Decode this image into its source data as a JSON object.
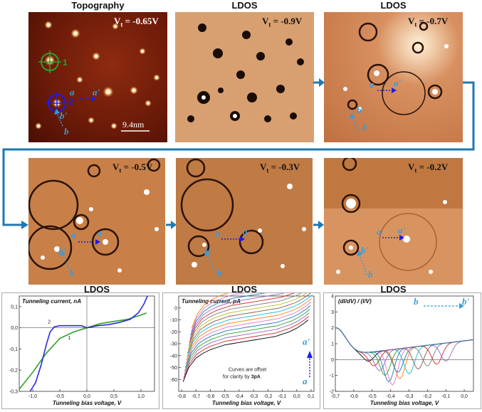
{
  "titles": {
    "topography": "Topography",
    "ldos_top_mid": "LDOS",
    "ldos_top_right": "LDOS",
    "ldos_mid_left": "LDOS",
    "ldos_mid_mid": "LDOS",
    "ldos_mid_right": "LDOS"
  },
  "voltages": {
    "p1": "V",
    "p1_sub": "t",
    "p1_val": " = -0.65V",
    "p2": "V",
    "p2_sub": "t",
    "p2_val": " = -0.9V",
    "p3": "V",
    "p3_sub": "t",
    "p3_val": " = -0.7V",
    "p4": "V",
    "p4_sub": "t",
    "p4_val": " = -0.5V",
    "p5": "V",
    "p5_sub": "t",
    "p5_val": " = -0.3V",
    "p6": "V",
    "p6_sub": "t",
    "p6_val": " = -0.2V"
  },
  "scale_bar": "9.4nm",
  "markers": {
    "one": "1",
    "two": "2",
    "a": "a",
    "a_prime": "a'",
    "b": "b",
    "b_prime": "b'"
  },
  "colors": {
    "arrow": "#1f78b4",
    "marker_green": "#2ea02c",
    "marker_blue": "#1a1aff",
    "label_blue": "#3a9ad9"
  },
  "chart_data": [
    {
      "type": "line",
      "title": "Tunneling current, nA",
      "xlabel": "Tunneling bias voltage, V",
      "xlim": [
        -1.25,
        1.25
      ],
      "ylim": [
        -0.3,
        0.15
      ],
      "xticks": [
        "-1,0",
        "-0,5",
        "0,0",
        "0,5",
        "1,0"
      ],
      "xtick_values": [
        -1.0,
        -0.5,
        0.0,
        0.5,
        1.0
      ],
      "yticks": [
        "0,1",
        "0,0",
        "-0,1",
        "-0,2",
        "-0,3"
      ],
      "ytick_values": [
        0.1,
        0.0,
        -0.1,
        -0.2,
        -0.3
      ],
      "series": [
        {
          "name": "1",
          "color": "#2ea02c",
          "x": [
            -1.25,
            -1.0,
            -0.75,
            -0.5,
            -0.25,
            0.0,
            0.25,
            0.5,
            0.75,
            1.0,
            1.1
          ],
          "y": [
            -0.29,
            -0.21,
            -0.12,
            -0.05,
            -0.02,
            0.0,
            0.02,
            0.03,
            0.04,
            0.06,
            0.07
          ]
        },
        {
          "name": "2",
          "color": "#2b2bdd",
          "x": [
            -1.05,
            -0.95,
            -0.85,
            -0.75,
            -0.68,
            -0.6,
            -0.5,
            -0.3,
            -0.1,
            0.0,
            0.2,
            0.4,
            0.6,
            0.8,
            0.95,
            1.05,
            1.12
          ],
          "y": [
            -0.3,
            -0.26,
            -0.18,
            -0.08,
            -0.02,
            0.005,
            0.01,
            0.01,
            0.01,
            0.0,
            0.01,
            0.015,
            0.025,
            0.04,
            0.07,
            0.11,
            0.15
          ]
        }
      ]
    },
    {
      "type": "line",
      "title": "Tunneling current, pA",
      "xlabel": "Tunneling bias voltage, V",
      "annotation": "Curves are offset for clarity by 3pA",
      "annotation_line1": "Curves are offset",
      "annotation_line2": "for clarity by",
      "annotation_bold": "3pA",
      "xlim": [
        -0.82,
        0.12
      ],
      "ylim": [
        -70,
        10
      ],
      "xticks": [
        "-0,8",
        "-0,7",
        "-0,6",
        "-0,5",
        "-0,4",
        "-0,3",
        "-0,2",
        "-0,1",
        "0,0",
        "0,1"
      ],
      "xtick_values": [
        -0.8,
        -0.7,
        -0.6,
        -0.5,
        -0.4,
        -0.3,
        -0.2,
        -0.1,
        0.0,
        0.1
      ],
      "yticks": [
        "0",
        "-10",
        "-20",
        "-30",
        "-40",
        "-50",
        "-60"
      ],
      "ytick_values": [
        0,
        -10,
        -20,
        -30,
        -40,
        -50,
        -60
      ],
      "series_colors": [
        "#000000",
        "#d62728",
        "#9467bd",
        "#2ca02c",
        "#1f77b4",
        "#e377c2",
        "#ff7f0e",
        "#17becf",
        "#8c564b",
        "#bcbd22",
        "#7f7f7f",
        "#d62728",
        "#9467bd",
        "#1f77b4",
        "#e377c2",
        "#ff7f0e"
      ],
      "base_curve": {
        "x": [
          -0.79,
          -0.75,
          -0.7,
          -0.65,
          -0.6,
          -0.55,
          -0.5,
          -0.45,
          -0.4,
          -0.35,
          -0.3,
          -0.25,
          -0.2,
          -0.15,
          -0.1,
          -0.05,
          0.0,
          0.05,
          0.08
        ],
        "y": [
          -62,
          -50,
          -42,
          -38,
          -35,
          -33,
          -31,
          -30,
          -29,
          -28,
          -27,
          -26,
          -25,
          -24,
          -22,
          -20,
          -17,
          -13,
          -10
        ]
      },
      "offset_step": 3,
      "x_shift_step": 0.004,
      "series_count": 16,
      "labels": {
        "a": "a",
        "a_prime": "a'"
      }
    },
    {
      "type": "line",
      "title": "(dI/dV) / (I/V)",
      "xlabel": "Tunneling bias voltage, V",
      "xlim": [
        -0.7,
        0.05
      ],
      "ylim": [
        -2,
        4
      ],
      "xticks": [
        "-0,7",
        "-0,6",
        "-0,5",
        "-0,4",
        "-0,3",
        "-0,2",
        "-0,1",
        "0,0"
      ],
      "xtick_values": [
        -0.7,
        -0.6,
        -0.5,
        -0.4,
        -0.3,
        -0.2,
        -0.1,
        0.0
      ],
      "yticks": [
        "4",
        "3",
        "2",
        "1",
        "0",
        "-1",
        "-2"
      ],
      "ytick_values": [
        4,
        3,
        2,
        1,
        0,
        -1,
        -2
      ],
      "series_colors": [
        "#000000",
        "#d62728",
        "#9467bd",
        "#2ca02c",
        "#1f77b4",
        "#e377c2",
        "#ff7f0e",
        "#17becf",
        "#8c564b",
        "#7f7f7f",
        "#d62728",
        "#9467bd",
        "#1f77b4"
      ],
      "dip_centers": [
        -0.52,
        -0.49,
        -0.46,
        -0.43,
        -0.41,
        -0.39,
        -0.35,
        -0.3,
        -0.25,
        -0.2,
        -0.15,
        -0.1,
        -0.36
      ],
      "dip_depths": [
        -0.3,
        -0.6,
        -0.9,
        -1.2,
        -1.6,
        -1.8,
        -1.4,
        -1.1,
        -0.8,
        -0.6,
        -0.5,
        -0.3,
        -1.0
      ],
      "labels": {
        "b": "b",
        "b_prime": "b'"
      }
    }
  ]
}
